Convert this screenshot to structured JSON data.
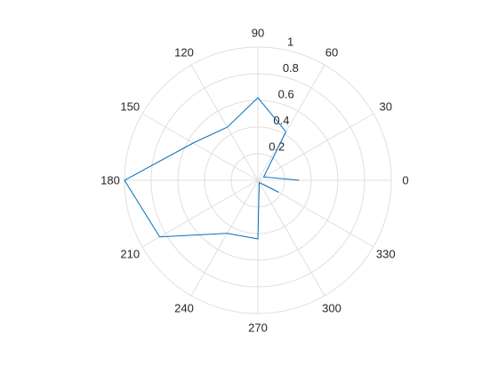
{
  "chart_data": {
    "type": "polar-line",
    "title": "",
    "theta_unit": "degrees",
    "theta_ticks": [
      0,
      30,
      60,
      90,
      120,
      150,
      180,
      210,
      240,
      270,
      300,
      330
    ],
    "theta_tick_labels": [
      "0",
      "30",
      "60",
      "90",
      "120",
      "150",
      "180",
      "210",
      "240",
      "270",
      "300",
      "330"
    ],
    "r_ticks": [
      0.2,
      0.4,
      0.6,
      0.8,
      1
    ],
    "r_tick_labels": [
      "0.2",
      "0.4",
      "0.6",
      "0.8",
      "1"
    ],
    "rlim": [
      0,
      1
    ],
    "grid": true,
    "series": [
      {
        "color": "#0072bd",
        "theta": [
          0,
          30,
          60,
          90,
          120,
          150,
          180,
          210,
          240,
          270,
          300,
          330
        ],
        "r": [
          0.31,
          0.05,
          0.42,
          0.62,
          0.46,
          0.56,
          1.0,
          0.85,
          0.46,
          0.44,
          0.02,
          0.18
        ]
      }
    ]
  }
}
